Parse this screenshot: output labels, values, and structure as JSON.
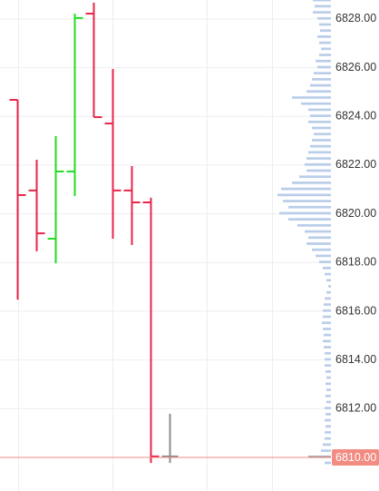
{
  "chart_data": {
    "type": "ohlc",
    "categories": [
      null,
      null,
      null,
      null,
      null,
      null,
      null,
      null,
      null
    ],
    "open": [
      6824.68,
      6820.96,
      6818.98,
      6821.74,
      6828.22,
      6823.71,
      6820.96,
      6820.47,
      6810.04
    ],
    "high": [
      6824.68,
      6822.22,
      6823.19,
      6828.22,
      6828.67,
      6825.95,
      6821.96,
      6820.66,
      6811.79
    ],
    "low": [
      6816.48,
      6818.46,
      6817.97,
      6820.73,
      6823.97,
      6818.98,
      6818.72,
      6809.77,
      6809.77
    ],
    "close": [
      6820.77,
      6819.2,
      6821.74,
      6828.04,
      6823.97,
      6820.96,
      6820.47,
      6810.04,
      6810.04
    ],
    "colors": [
      "#e8264a",
      "#e8264a",
      "#22dd22",
      "#22dd22",
      "#e8264a",
      "#e8264a",
      "#e8264a",
      "#e8264a",
      "#8c8c8c"
    ],
    "ylim": [
      6808.62,
      6828.78
    ],
    "yticks": [
      {
        "value": 6812,
        "label": "6812.00"
      },
      {
        "value": 6814,
        "label": "6814.00"
      },
      {
        "value": 6816,
        "label": "6816.00"
      },
      {
        "value": 6818,
        "label": "6818.00"
      },
      {
        "value": 6820,
        "label": "6820.00"
      },
      {
        "value": 6822,
        "label": "6822.00"
      },
      {
        "value": 6824,
        "label": "6824.00"
      },
      {
        "value": 6826,
        "label": "6826.00"
      },
      {
        "value": 6828,
        "label": "6828.00"
      }
    ],
    "grid": true,
    "last_price": {
      "value": 6810,
      "label": "6810.00"
    },
    "last_price_color": "#f28b82",
    "volume_profile": {
      "color": "#b9cde9",
      "highlight_color": "#a9a9b4",
      "prices": [
        6828.75,
        6828.5,
        6828.25,
        6828,
        6827.75,
        6827.5,
        6827.25,
        6827,
        6826.75,
        6826.5,
        6826.25,
        6826,
        6825.75,
        6825.5,
        6825.25,
        6825,
        6824.75,
        6824.5,
        6824.25,
        6824,
        6823.75,
        6823.5,
        6823.25,
        6823,
        6822.75,
        6822.5,
        6822.25,
        6822,
        6821.75,
        6821.5,
        6821.25,
        6821,
        6820.75,
        6820.5,
        6820.25,
        6820,
        6819.75,
        6819.5,
        6819.25,
        6819,
        6818.75,
        6818.5,
        6818.25,
        6818,
        6817.75,
        6817.5,
        6817.25,
        6817,
        6816.75,
        6816.5,
        6816.25,
        6816,
        6815.75,
        6815.5,
        6815.25,
        6815,
        6814.75,
        6814.5,
        6814.25,
        6814,
        6813.75,
        6813.5,
        6813.25,
        6813,
        6812.75,
        6812.5,
        6812.25,
        6812,
        6811.75,
        6811.5,
        6811.25,
        6811,
        6810.75,
        6810.5,
        6810.25,
        6810,
        6809.75
      ],
      "volumes": [
        20,
        18,
        20,
        15,
        13,
        12,
        15,
        13,
        11,
        13,
        17,
        15,
        19,
        21,
        23,
        27,
        43,
        33,
        25,
        23,
        25,
        21,
        19,
        21,
        23,
        25,
        27,
        29,
        27,
        35,
        43,
        55,
        59,
        53,
        47,
        57,
        47,
        37,
        29,
        25,
        27,
        21,
        17,
        13,
        9,
        7,
        5,
        3,
        5,
        7,
        8,
        9,
        9,
        10,
        9,
        8,
        9,
        8,
        7,
        7,
        7,
        6,
        5,
        6,
        5,
        6,
        5,
        7,
        6,
        7,
        6,
        7,
        7,
        9,
        11,
        25,
        7
      ]
    }
  }
}
